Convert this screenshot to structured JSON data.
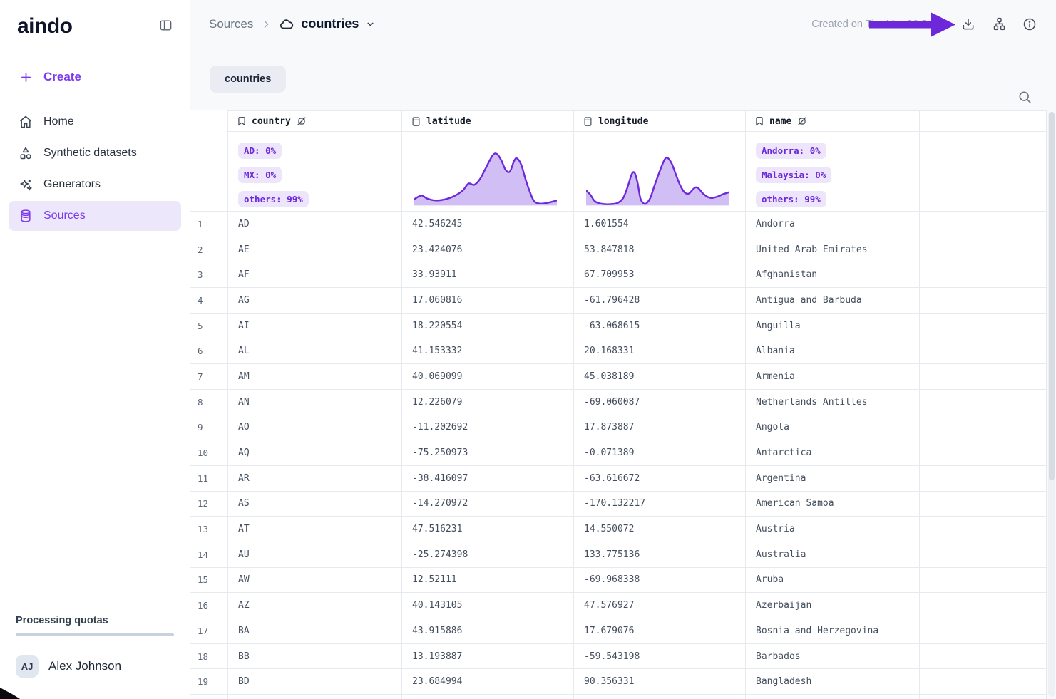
{
  "brand": {
    "logo": "aindo",
    "accent": "#7c3aed"
  },
  "sidebar": {
    "create_label": "Create",
    "items": [
      {
        "label": "Home",
        "icon": "home-icon",
        "active": false
      },
      {
        "label": "Synthetic datasets",
        "icon": "shapes-icon",
        "active": false
      },
      {
        "label": "Generators",
        "icon": "sparkles-icon",
        "active": false
      },
      {
        "label": "Sources",
        "icon": "database-icon",
        "active": true
      }
    ],
    "processing_quotas_label": "Processing quotas",
    "user": {
      "initials": "AJ",
      "name": "Alex Johnson"
    }
  },
  "header": {
    "breadcrumb": {
      "parent": "Sources",
      "current": "countries"
    },
    "created_on": "Created on Thu Mar 06 2",
    "action_icons": [
      "download-icon",
      "lineage-icon",
      "info-icon"
    ]
  },
  "tabs": [
    {
      "label": "countries",
      "active": true
    }
  ],
  "table": {
    "columns": [
      {
        "key": "country",
        "label": "country",
        "type": "text"
      },
      {
        "key": "latitude",
        "label": "latitude",
        "type": "numeric"
      },
      {
        "key": "longitude",
        "label": "longitude",
        "type": "numeric"
      },
      {
        "key": "name",
        "label": "name",
        "type": "text"
      }
    ],
    "distributions": {
      "country": {
        "type": "badges",
        "items": [
          "AD: 0%",
          "MX: 0%",
          "others: 99%"
        ]
      },
      "name": {
        "type": "badges",
        "items": [
          "Andorra: 0%",
          "Malaysia: 0%",
          "others: 99%"
        ]
      },
      "latitude": {
        "type": "area",
        "points": [
          [
            0,
            87
          ],
          [
            5,
            81
          ],
          [
            9,
            86
          ],
          [
            15,
            89
          ],
          [
            22,
            87
          ],
          [
            28,
            82
          ],
          [
            34,
            73
          ],
          [
            38,
            62
          ],
          [
            42,
            64
          ],
          [
            46,
            55
          ],
          [
            50,
            38
          ],
          [
            55,
            17
          ],
          [
            58,
            15
          ],
          [
            61,
            25
          ],
          [
            64,
            40
          ],
          [
            67,
            43
          ],
          [
            70,
            26
          ],
          [
            72,
            22
          ],
          [
            75,
            32
          ],
          [
            78,
            55
          ],
          [
            81,
            75
          ],
          [
            84,
            90
          ],
          [
            88,
            94
          ],
          [
            93,
            93
          ],
          [
            100,
            89
          ]
        ],
        "baseline": 97
      },
      "longitude": {
        "type": "area",
        "points": [
          [
            0,
            73
          ],
          [
            3,
            80
          ],
          [
            6,
            90
          ],
          [
            10,
            94
          ],
          [
            16,
            95
          ],
          [
            22,
            93
          ],
          [
            26,
            85
          ],
          [
            29,
            68
          ],
          [
            32,
            47
          ],
          [
            34,
            45
          ],
          [
            36,
            60
          ],
          [
            38,
            85
          ],
          [
            40,
            93
          ],
          [
            42,
            94
          ],
          [
            45,
            85
          ],
          [
            48,
            65
          ],
          [
            52,
            40
          ],
          [
            55,
            24
          ],
          [
            57,
            21
          ],
          [
            60,
            30
          ],
          [
            63,
            48
          ],
          [
            66,
            65
          ],
          [
            69,
            76
          ],
          [
            72,
            78
          ],
          [
            75,
            71
          ],
          [
            77,
            68
          ],
          [
            79,
            70
          ],
          [
            82,
            78
          ],
          [
            85,
            83
          ],
          [
            88,
            85
          ],
          [
            92,
            83
          ],
          [
            96,
            79
          ],
          [
            100,
            76
          ]
        ],
        "baseline": 97
      }
    },
    "rows": [
      {
        "n": "1",
        "country": "AD",
        "latitude": "42.546245",
        "longitude": "1.601554",
        "name": "Andorra"
      },
      {
        "n": "2",
        "country": "AE",
        "latitude": "23.424076",
        "longitude": "53.847818",
        "name": "United Arab Emirates"
      },
      {
        "n": "3",
        "country": "AF",
        "latitude": "33.93911",
        "longitude": "67.709953",
        "name": "Afghanistan"
      },
      {
        "n": "4",
        "country": "AG",
        "latitude": "17.060816",
        "longitude": "-61.796428",
        "name": "Antigua and Barbuda"
      },
      {
        "n": "5",
        "country": "AI",
        "latitude": "18.220554",
        "longitude": "-63.068615",
        "name": "Anguilla"
      },
      {
        "n": "6",
        "country": "AL",
        "latitude": "41.153332",
        "longitude": "20.168331",
        "name": "Albania"
      },
      {
        "n": "7",
        "country": "AM",
        "latitude": "40.069099",
        "longitude": "45.038189",
        "name": "Armenia"
      },
      {
        "n": "8",
        "country": "AN",
        "latitude": "12.226079",
        "longitude": "-69.060087",
        "name": "Netherlands Antilles"
      },
      {
        "n": "9",
        "country": "AO",
        "latitude": "-11.202692",
        "longitude": "17.873887",
        "name": "Angola"
      },
      {
        "n": "10",
        "country": "AQ",
        "latitude": "-75.250973",
        "longitude": "-0.071389",
        "name": "Antarctica"
      },
      {
        "n": "11",
        "country": "AR",
        "latitude": "-38.416097",
        "longitude": "-63.616672",
        "name": "Argentina"
      },
      {
        "n": "12",
        "country": "AS",
        "latitude": "-14.270972",
        "longitude": "-170.132217",
        "name": "American Samoa"
      },
      {
        "n": "13",
        "country": "AT",
        "latitude": "47.516231",
        "longitude": "14.550072",
        "name": "Austria"
      },
      {
        "n": "14",
        "country": "AU",
        "latitude": "-25.274398",
        "longitude": "133.775136",
        "name": "Australia"
      },
      {
        "n": "15",
        "country": "AW",
        "latitude": "12.52111",
        "longitude": "-69.968338",
        "name": "Aruba"
      },
      {
        "n": "16",
        "country": "AZ",
        "latitude": "40.143105",
        "longitude": "47.576927",
        "name": "Azerbaijan"
      },
      {
        "n": "17",
        "country": "BA",
        "latitude": "43.915886",
        "longitude": "17.679076",
        "name": "Bosnia and Herzegovina"
      },
      {
        "n": "18",
        "country": "BB",
        "latitude": "13.193887",
        "longitude": "-59.543198",
        "name": "Barbados"
      },
      {
        "n": "19",
        "country": "BD",
        "latitude": "23.684994",
        "longitude": "90.356331",
        "name": "Bangladesh"
      }
    ]
  },
  "colors": {
    "accent_purple": "#7c3aed",
    "badge_text": "#6d28d9",
    "badge_bg": "#ece5fb",
    "chart_stroke": "#6d28d9",
    "chart_fill": "#c8b3f2",
    "arrow_annotation": "#6d28d9"
  }
}
